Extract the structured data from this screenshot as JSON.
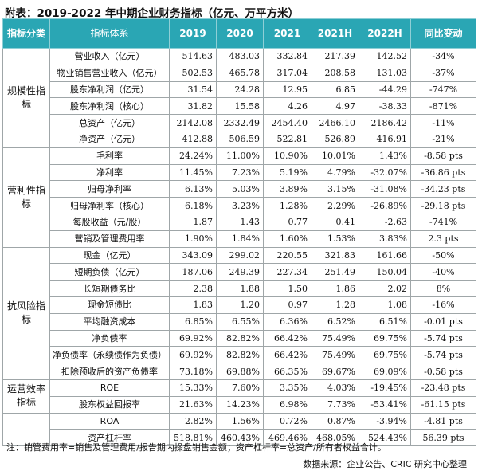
{
  "title": "附表：2019-2022 年中期企业财务指标（亿元、万平方米）",
  "headers": {
    "category": "指标分类",
    "indicator": "指标体系",
    "cols": [
      "2019",
      "2020",
      "2021",
      "2021H",
      "2022H",
      "同比变动"
    ]
  },
  "sections": [
    {
      "name": "规模性指标",
      "rows": [
        {
          "label": "营业收入（亿元）",
          "values": [
            "514.63",
            "483.03",
            "332.84",
            "217.39",
            "142.52"
          ],
          "yoy": "-34%"
        },
        {
          "label": "物业销售营业收入（亿元）",
          "values": [
            "502.53",
            "465.78",
            "317.04",
            "208.58",
            "131.03"
          ],
          "yoy": "-37%"
        },
        {
          "label": "股东净利润（亿元）",
          "values": [
            "31.54",
            "24.28",
            "12.95",
            "6.85",
            "-44.29"
          ],
          "yoy": "-747%"
        },
        {
          "label": "股东净利润（核心）",
          "values": [
            "31.82",
            "15.58",
            "4.26",
            "4.97",
            "-38.33"
          ],
          "yoy": "-871%"
        },
        {
          "label": "总资产（亿元）",
          "values": [
            "2142.08",
            "2332.49",
            "2454.40",
            "2466.10",
            "2186.42"
          ],
          "yoy": "-11%"
        },
        {
          "label": "净资产（亿元）",
          "values": [
            "412.88",
            "506.59",
            "522.81",
            "526.89",
            "416.91"
          ],
          "yoy": "-21%"
        }
      ]
    },
    {
      "name": "营利性指标",
      "rows": [
        {
          "label": "毛利率",
          "values": [
            "24.24%",
            "11.00%",
            "10.90%",
            "10.01%",
            "1.43%"
          ],
          "yoy": "-8.58 pts"
        },
        {
          "label": "净利率",
          "values": [
            "11.45%",
            "7.23%",
            "5.19%",
            "4.79%",
            "-32.07%"
          ],
          "yoy": "-36.86 pts"
        },
        {
          "label": "归母净利率",
          "values": [
            "6.13%",
            "5.03%",
            "3.89%",
            "3.15%",
            "-31.08%"
          ],
          "yoy": "-34.23 pts"
        },
        {
          "label": "归母净利率（核心）",
          "values": [
            "6.18%",
            "3.23%",
            "1.28%",
            "2.29%",
            "-26.89%"
          ],
          "yoy": "-29.18 pts"
        },
        {
          "label": "每股收益（元/股）",
          "values": [
            "1.87",
            "1.43",
            "0.77",
            "0.41",
            "-2.63"
          ],
          "yoy": "-741%"
        },
        {
          "label": "营销及管理费用率",
          "values": [
            "1.90%",
            "1.84%",
            "1.60%",
            "1.53%",
            "3.83%"
          ],
          "yoy": "2.3 pts"
        }
      ]
    },
    {
      "name": "抗风险指标",
      "rows": [
        {
          "label": "现金（亿元）",
          "values": [
            "343.09",
            "299.02",
            "220.55",
            "321.83",
            "161.66"
          ],
          "yoy": "-50%"
        },
        {
          "label": "短期负债（亿元）",
          "values": [
            "187.06",
            "249.39",
            "227.34",
            "251.49",
            "150.04"
          ],
          "yoy": "-40%"
        },
        {
          "label": "长短期债务比",
          "values": [
            "2.38",
            "1.88",
            "1.50",
            "1.86",
            "2.02"
          ],
          "yoy": "8%"
        },
        {
          "label": "现金短债比",
          "values": [
            "1.83",
            "1.20",
            "0.97",
            "1.28",
            "1.08"
          ],
          "yoy": "-16%"
        },
        {
          "label": "平均融资成本",
          "values": [
            "6.85%",
            "6.55%",
            "6.36%",
            "6.52%",
            "6.51%"
          ],
          "yoy": "-0.01 pts"
        },
        {
          "label": "净负债率",
          "values": [
            "69.92%",
            "82.82%",
            "66.42%",
            "75.49%",
            "69.75%"
          ],
          "yoy": "-5.74 pts"
        },
        {
          "label": "净负债率（永续债作为负债）",
          "values": [
            "69.92%",
            "82.82%",
            "66.42%",
            "75.49%",
            "69.75%"
          ],
          "yoy": "-5.74 pts"
        },
        {
          "label": "扣除预收后的资产负债率",
          "values": [
            "73.18%",
            "69.88%",
            "66.35%",
            "69.67%",
            "69.09%"
          ],
          "yoy": "-0.58 pts"
        }
      ]
    },
    {
      "name": "运营效率指标",
      "rows": [
        {
          "label": "ROE",
          "values": [
            "15.33%",
            "7.60%",
            "3.35%",
            "4.03%",
            "-19.45%"
          ],
          "yoy": "-23.48 pts"
        },
        {
          "label": "股东权益回报率",
          "values": [
            "21.63%",
            "14.23%",
            "6.98%",
            "7.73%",
            "-53.41%"
          ],
          "yoy": "-61.15 pts"
        }
      ]
    },
    {
      "name": "",
      "rows": [
        {
          "label": "ROA",
          "values": [
            "2.82%",
            "1.56%",
            "0.72%",
            "0.87%",
            "-3.94%"
          ],
          "yoy": "-4.81 pts"
        },
        {
          "label": "资产杠杆率",
          "values": [
            "518.81%",
            "460.43%",
            "469.46%",
            "468.05%",
            "524.43%"
          ],
          "yoy": "56.39 pts"
        }
      ]
    }
  ],
  "note": "注：销管费用率=销售及管理费用/报告期内操盘销售金额；资产杠杆率=总资产/所有者权益合计。",
  "source": "数据来源：企业公告、CRIC 研究中心整理"
}
